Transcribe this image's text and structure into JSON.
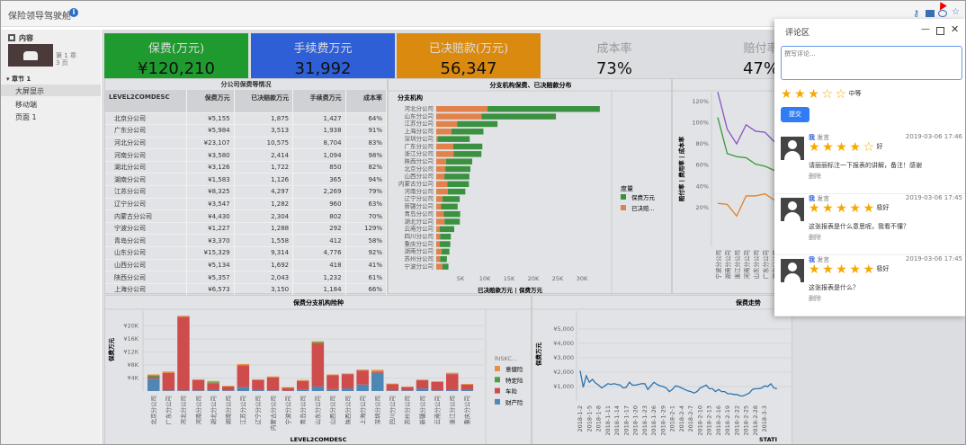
{
  "app": {
    "title": "保险领导驾驶舱",
    "info_icon": "info-icon",
    "toolbar_icons": [
      "key-icon",
      "present-icon",
      "comment-icon",
      "star-icon"
    ]
  },
  "sidebar": {
    "header": "内容",
    "chapter_info": "第 1 章",
    "pages": "3 页",
    "section": "章节 1",
    "items": [
      {
        "label": "大屏显示",
        "selected": true
      },
      {
        "label": "移动端"
      },
      {
        "label": "页面 1"
      }
    ]
  },
  "kpis": [
    {
      "label": "保费(万元)",
      "value": "¥120,210",
      "color": "#1f9a2e"
    },
    {
      "label": "手续费万元",
      "value": "31,992",
      "color": "#2f5fd6"
    },
    {
      "label": "已决赔款(万元)",
      "value": "56,347",
      "color": "#db8a10"
    },
    {
      "label": "成本率",
      "value": "73%",
      "color": "#dcdde0"
    },
    {
      "label": "赔付率",
      "value": "47%",
      "color": "#dcdde0"
    }
  ],
  "table": {
    "title": "分公司保费等情况",
    "headers": [
      "LEVEL2COMDESC",
      "保费万元",
      "已决赔款万元",
      "手续费万元",
      "成本率"
    ],
    "rows": [
      [
        "北京分公司",
        "¥5,155",
        "1,875",
        "1,427",
        "64%"
      ],
      [
        "广东分公司",
        "¥5,984",
        "3,513",
        "1,938",
        "91%"
      ],
      [
        "河北分公司",
        "¥23,107",
        "10,575",
        "8,704",
        "83%"
      ],
      [
        "河南分公司",
        "¥3,580",
        "2,414",
        "1,094",
        "98%"
      ],
      [
        "湖北分公司",
        "¥3,126",
        "1,722",
        "850",
        "82%"
      ],
      [
        "湖南分公司",
        "¥1,583",
        "1,126",
        "365",
        "94%"
      ],
      [
        "江苏分公司",
        "¥8,325",
        "4,297",
        "2,269",
        "79%"
      ],
      [
        "辽宁分公司",
        "¥3,547",
        "1,282",
        "960",
        "63%"
      ],
      [
        "内蒙古分公司",
        "¥4,430",
        "2,304",
        "802",
        "70%"
      ],
      [
        "宁波分公司",
        "¥1,227",
        "1,288",
        "292",
        "129%"
      ],
      [
        "青岛分公司",
        "¥3,370",
        "1,558",
        "412",
        "58%"
      ],
      [
        "山东分公司",
        "¥15,329",
        "9,314",
        "4,776",
        "92%"
      ],
      [
        "山西分公司",
        "¥5,134",
        "1,692",
        "418",
        "41%"
      ],
      [
        "陕西分公司",
        "¥5,357",
        "2,043",
        "1,232",
        "61%"
      ],
      [
        "上海分公司",
        "¥6,573",
        "3,150",
        "1,184",
        "66%"
      ]
    ]
  },
  "chart_data": [
    {
      "type": "bar",
      "orientation": "horizontal",
      "stacked": true,
      "title": "分支机构保费、已决赔款分布",
      "row_header": "分支机构",
      "xlabel": "已决赔款万元 | 保费万元",
      "xticks": [
        "5K",
        "10K",
        "15K",
        "20K",
        "25K",
        "30K"
      ],
      "xlim": [
        0,
        35000
      ],
      "legend": {
        "title": "度量",
        "placement": "right",
        "items": [
          {
            "name": "保费万元",
            "color": "#3a9140"
          },
          {
            "name": "已决赔...",
            "color": "#e0824a"
          }
        ]
      },
      "categories": [
        "河北分公司",
        "山东分公司",
        "江苏分公司",
        "上海分公司",
        "深圳分公司",
        "广东分公司",
        "浙江分公司",
        "陕西分公司",
        "北京分公司",
        "山西分公司",
        "内蒙古分公司",
        "河南分公司",
        "辽宁分公司",
        "新疆分公司",
        "青岛分公司",
        "湖北分公司",
        "云南分公司",
        "四川分公司",
        "重庆分公司",
        "湖南分公司",
        "苏州分公司",
        "宁波分公司"
      ],
      "series": [
        {
          "name": "已决赔款万元",
          "values": [
            10575,
            9314,
            4297,
            3150,
            300,
            3513,
            3600,
            2043,
            1875,
            1692,
            2304,
            2414,
            1282,
            1000,
            1558,
            1722,
            700,
            800,
            750,
            1126,
            800,
            1288
          ]
        },
        {
          "name": "保费万元",
          "values": [
            23107,
            15329,
            8325,
            6573,
            6600,
            5984,
            5700,
            5357,
            5155,
            5134,
            4430,
            3580,
            3547,
            3400,
            3370,
            3126,
            3000,
            2200,
            2150,
            1583,
            1400,
            1227
          ]
        }
      ]
    },
    {
      "type": "line",
      "ylabel": "赔付率 | 费用率 | 成本率",
      "yticks": [
        "20%",
        "40%",
        "60%",
        "80%",
        "100%",
        "120%"
      ],
      "ylim": [
        0,
        140
      ],
      "categories": [
        "宁波分公司",
        "湖南分公司",
        "浙江分公司",
        "河南分公司",
        "山东分公司",
        "广东分公司",
        "湖北分公司"
      ],
      "series": [
        {
          "values": [
            129,
            94,
            80,
            98,
            92,
            91,
            82
          ],
          "color": "#8a55c0"
        },
        {
          "values": [
            105,
            71,
            68,
            67,
            61,
            59,
            55
          ],
          "color": "#3a9a3a"
        },
        {
          "values": [
            24,
            23,
            12,
            31,
            31,
            33,
            27
          ],
          "color": "#e0822a"
        }
      ]
    },
    {
      "type": "bar",
      "stacked": true,
      "title": "保费分支机构险种",
      "xlabel": "LEVEL2COMDESC",
      "ylabel": "保费万元",
      "yticks": [
        "¥4K",
        "¥8K",
        "¥12K",
        "¥16K",
        "¥20K"
      ],
      "ylim": [
        0,
        24000
      ],
      "legend": {
        "title": "RISKC...",
        "placement": "right"
      },
      "categories": [
        "北京分公司",
        "广东分公司",
        "河北分公司",
        "河南分公司",
        "湖北分公司",
        "湖南分公司",
        "江苏分公司",
        "辽宁分公司",
        "内蒙古分公司",
        "宁波分公司",
        "青岛分公司",
        "山东分公司",
        "山西分公司",
        "陕西分公司",
        "上海分公司",
        "深圳分公司",
        "四川分公司",
        "苏州分公司",
        "新疆分公司",
        "云南分公司",
        "浙江分公司",
        "重庆分公司"
      ],
      "series": [
        {
          "name": "财产险",
          "color": "#4e86b4",
          "values": [
            3800,
            200,
            200,
            200,
            400,
            200,
            1200,
            300,
            200,
            100,
            500,
            1400,
            600,
            800,
            2000,
            5600,
            200,
            200,
            800,
            200,
            300,
            400
          ]
        },
        {
          "name": "车险",
          "color": "#cf4c4c",
          "values": [
            600,
            5400,
            22600,
            3200,
            1900,
            1200,
            6700,
            3100,
            4000,
            900,
            2600,
            13200,
            4300,
            4400,
            4300,
            400,
            1900,
            1000,
            2500,
            2600,
            4900,
            1600
          ]
        },
        {
          "name": "特定险",
          "color": "#4aa040",
          "values": [
            400,
            0,
            0,
            0,
            400,
            0,
            0,
            0,
            0,
            0,
            0,
            300,
            0,
            0,
            0,
            0,
            0,
            0,
            0,
            0,
            0,
            0
          ]
        },
        {
          "name": "意健险",
          "color": "#e89040",
          "values": [
            300,
            400,
            300,
            200,
            400,
            200,
            400,
            200,
            300,
            200,
            300,
            400,
            200,
            200,
            300,
            500,
            200,
            200,
            200,
            200,
            400,
            200
          ]
        }
      ]
    },
    {
      "type": "line",
      "title": "保费走势",
      "ylabel": "保费万元",
      "xlabel": "STATI",
      "yticks": [
        "¥1,000",
        "¥2,000",
        "¥3,000",
        "¥4,000",
        "¥5,000"
      ],
      "ylim": [
        0,
        6000
      ],
      "color": "#2a74b0",
      "xticks": [
        "2018-1-2",
        "2018-1-5",
        "2018-1-8",
        "2018-1-11",
        "2018-1-14",
        "2018-1-17",
        "2018-1-20",
        "2018-1-23",
        "2018-1-26",
        "2018-1-29",
        "2018-2-1",
        "2018-2-4",
        "2018-2-7",
        "2018-2-10",
        "2018-2-13",
        "2018-2-16",
        "2018-2-19",
        "2018-2-22",
        "2018-2-25",
        "2018-2-28",
        "2018-3-3"
      ],
      "values": [
        2100,
        950,
        1750,
        1300,
        1500,
        1250,
        1100,
        900,
        1050,
        1200,
        1150,
        1200,
        1150,
        1100,
        900,
        950,
        1300,
        1100,
        1100,
        1150,
        1200,
        1200,
        800,
        1050,
        1300,
        1150,
        1050,
        1000,
        900,
        650,
        800,
        1050,
        1000,
        900,
        800,
        700,
        650,
        550,
        650,
        900,
        1000,
        1100,
        850,
        850,
        650,
        800,
        650,
        650,
        500,
        500,
        450,
        450,
        350,
        350,
        450,
        550,
        800,
        850,
        850,
        900,
        1050,
        1000,
        1200,
        900,
        850
      ]
    }
  ],
  "comments": {
    "title": "评论区",
    "placeholder": "撰写评论...",
    "rating": 3,
    "rating_label": "中等",
    "submit": "提交",
    "items": [
      {
        "user": "我",
        "action": "发言",
        "time": "2019-03-06 17:46",
        "rating": 4,
        "rating_label": "好",
        "text": "请丽丽标注一下报表的讲解，备注！感谢",
        "delete": "删除"
      },
      {
        "user": "我",
        "action": "发言",
        "time": "2019-03-06 17:45",
        "rating": 5,
        "rating_label": "极好",
        "text": "这张报表是什么意思呢，我看不懂？",
        "delete": "删除"
      },
      {
        "user": "我",
        "action": "发言",
        "time": "2019-03-06 17:45",
        "rating": 5,
        "rating_label": "极好",
        "text": "这张报表是什么？",
        "delete": "删除"
      }
    ]
  }
}
